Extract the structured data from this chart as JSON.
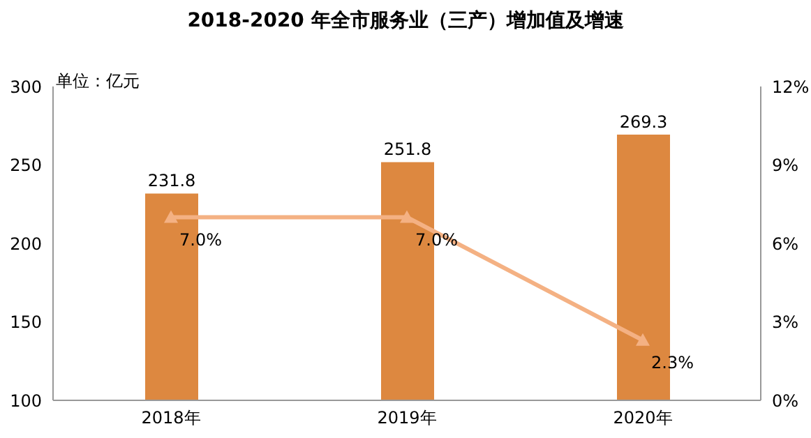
{
  "chart_data": {
    "type": "bar",
    "title": "2018-2020 年全市服务业（三产）增加值及增速",
    "annotations": [
      "单位：亿元"
    ],
    "categories": [
      "2018年",
      "2019年",
      "2020年"
    ],
    "series": [
      {
        "color": "#dd8840",
        "values": [
          231.8,
          251.8,
          269.3
        ],
        "data_labels": true
      },
      {
        "type": "line",
        "axis": "y2",
        "color": "#f4b183",
        "values": [
          7.0,
          7.0,
          2.3
        ],
        "value_labels": [
          "7.0%",
          "7.0%",
          "2.3%"
        ],
        "marker": "triangle"
      }
    ],
    "ylim": [
      100,
      300
    ],
    "yticks": [
      100,
      150,
      200,
      250,
      300
    ],
    "y2lim": [
      0,
      12
    ],
    "y2ticks": [
      {
        "value": 0,
        "label": "0%"
      },
      {
        "value": 3,
        "label": "3%"
      },
      {
        "value": 6,
        "label": "6%"
      },
      {
        "value": 9,
        "label": "9%"
      },
      {
        "value": 12,
        "label": "12%"
      }
    ],
    "grid": false,
    "legend": false
  }
}
